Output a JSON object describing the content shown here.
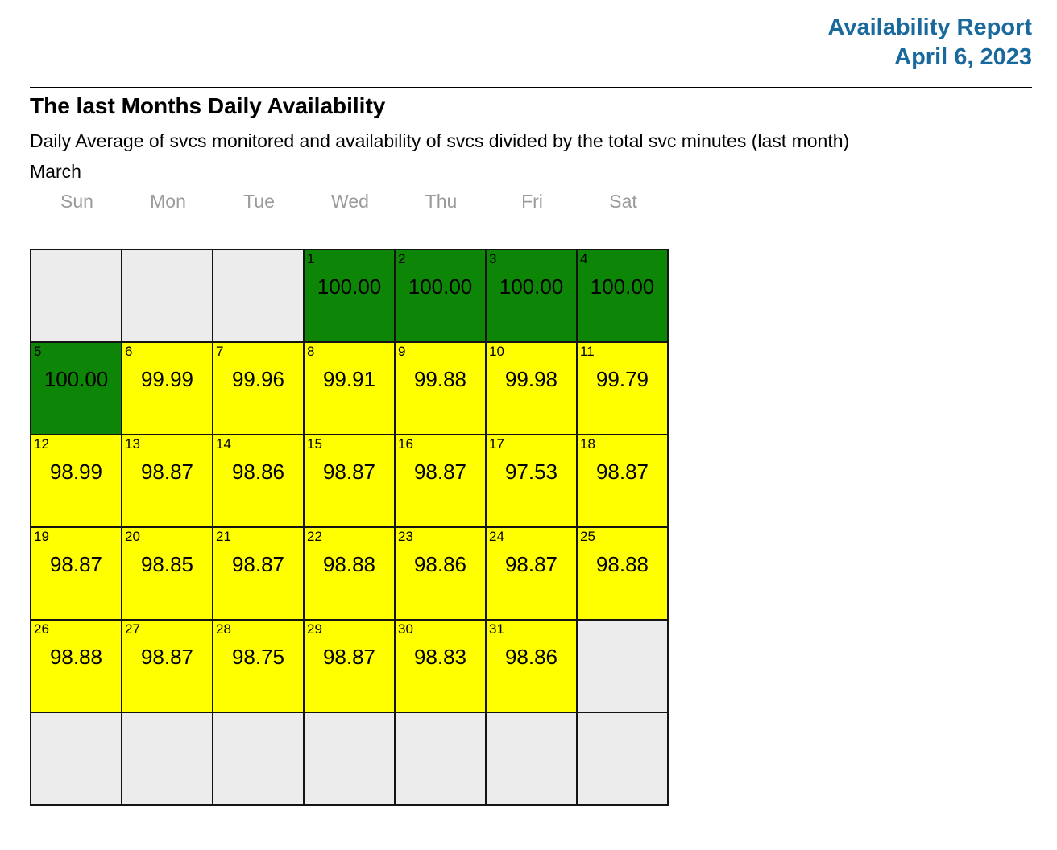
{
  "report": {
    "title": "Availability Report",
    "date": "April 6, 2023"
  },
  "section": {
    "heading": "The last Months Daily Availability",
    "description": "Daily Average of svcs monitored and availability of svcs divided by the total svc minutes (last month)",
    "month": "March"
  },
  "calendar": {
    "weekdays": [
      "Sun",
      "Mon",
      "Tue",
      "Wed",
      "Thu",
      "Fri",
      "Sat"
    ],
    "weeks": [
      [
        {
          "day": "",
          "value": "",
          "status": "empty"
        },
        {
          "day": "",
          "value": "",
          "status": "empty"
        },
        {
          "day": "",
          "value": "",
          "status": "empty"
        },
        {
          "day": "1",
          "value": "100.00",
          "status": "green"
        },
        {
          "day": "2",
          "value": "100.00",
          "status": "green"
        },
        {
          "day": "3",
          "value": "100.00",
          "status": "green"
        },
        {
          "day": "4",
          "value": "100.00",
          "status": "green"
        }
      ],
      [
        {
          "day": "5",
          "value": "100.00",
          "status": "green"
        },
        {
          "day": "6",
          "value": "99.99",
          "status": "yellow"
        },
        {
          "day": "7",
          "value": "99.96",
          "status": "yellow"
        },
        {
          "day": "8",
          "value": "99.91",
          "status": "yellow"
        },
        {
          "day": "9",
          "value": "99.88",
          "status": "yellow"
        },
        {
          "day": "10",
          "value": "99.98",
          "status": "yellow"
        },
        {
          "day": "11",
          "value": "99.79",
          "status": "yellow"
        }
      ],
      [
        {
          "day": "12",
          "value": "98.99",
          "status": "yellow"
        },
        {
          "day": "13",
          "value": "98.87",
          "status": "yellow"
        },
        {
          "day": "14",
          "value": "98.86",
          "status": "yellow"
        },
        {
          "day": "15",
          "value": "98.87",
          "status": "yellow"
        },
        {
          "day": "16",
          "value": "98.87",
          "status": "yellow"
        },
        {
          "day": "17",
          "value": "97.53",
          "status": "yellow"
        },
        {
          "day": "18",
          "value": "98.87",
          "status": "yellow"
        }
      ],
      [
        {
          "day": "19",
          "value": "98.87",
          "status": "yellow"
        },
        {
          "day": "20",
          "value": "98.85",
          "status": "yellow"
        },
        {
          "day": "21",
          "value": "98.87",
          "status": "yellow"
        },
        {
          "day": "22",
          "value": "98.88",
          "status": "yellow"
        },
        {
          "day": "23",
          "value": "98.86",
          "status": "yellow"
        },
        {
          "day": "24",
          "value": "98.87",
          "status": "yellow"
        },
        {
          "day": "25",
          "value": "98.88",
          "status": "yellow"
        }
      ],
      [
        {
          "day": "26",
          "value": "98.88",
          "status": "yellow"
        },
        {
          "day": "27",
          "value": "98.87",
          "status": "yellow"
        },
        {
          "day": "28",
          "value": "98.75",
          "status": "yellow"
        },
        {
          "day": "29",
          "value": "98.87",
          "status": "yellow"
        },
        {
          "day": "30",
          "value": "98.83",
          "status": "yellow"
        },
        {
          "day": "31",
          "value": "98.86",
          "status": "yellow"
        },
        {
          "day": "",
          "value": "",
          "status": "empty"
        }
      ],
      [
        {
          "day": "",
          "value": "",
          "status": "empty"
        },
        {
          "day": "",
          "value": "",
          "status": "empty"
        },
        {
          "day": "",
          "value": "",
          "status": "empty"
        },
        {
          "day": "",
          "value": "",
          "status": "empty"
        },
        {
          "day": "",
          "value": "",
          "status": "empty"
        },
        {
          "day": "",
          "value": "",
          "status": "empty"
        },
        {
          "day": "",
          "value": "",
          "status": "empty"
        }
      ]
    ]
  },
  "colors": {
    "accent_blue": "#19699d",
    "green": "#0d8506",
    "yellow": "#ffff00",
    "empty": "#ececec",
    "grid_border": "#141414",
    "weekday_gray": "#9b9b9b"
  }
}
